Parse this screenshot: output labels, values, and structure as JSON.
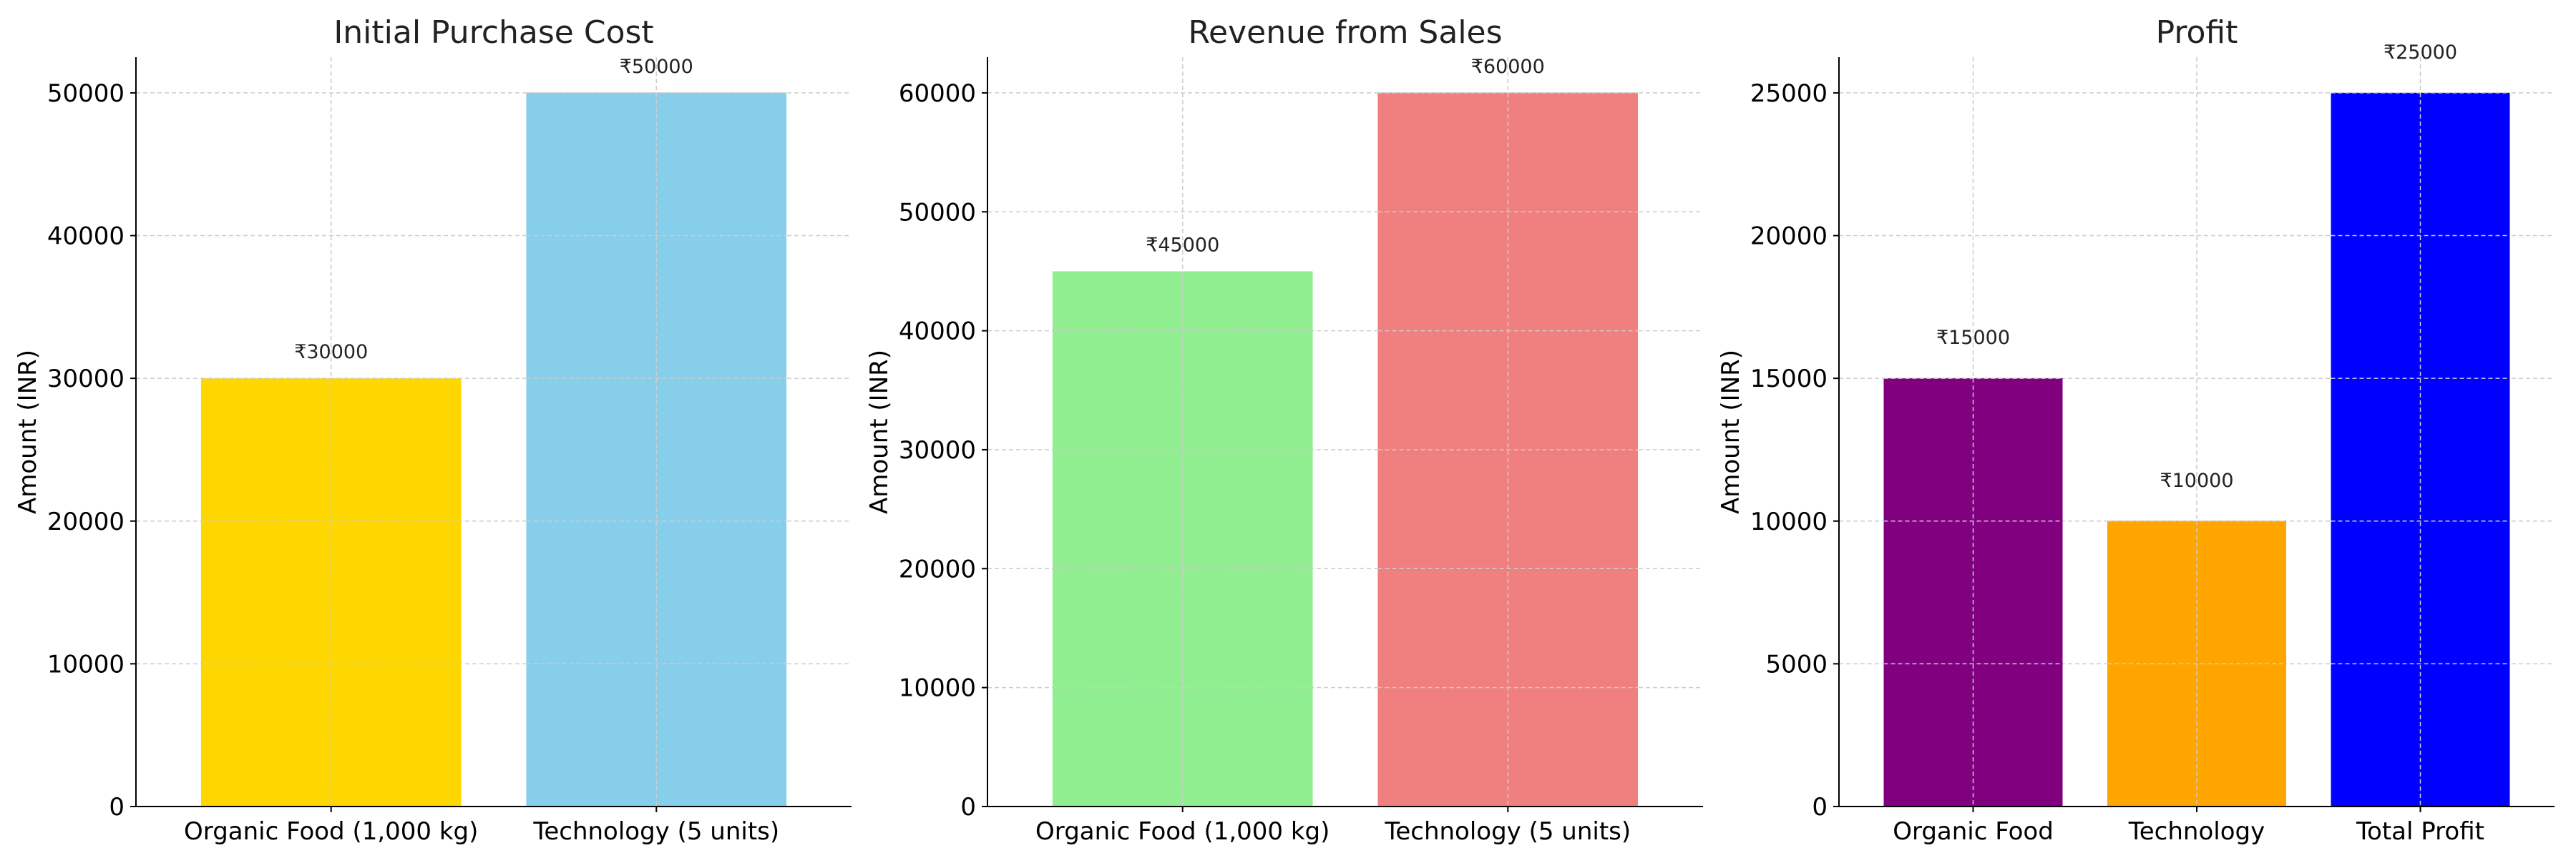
{
  "chart_data": [
    {
      "type": "bar",
      "title": "Initial Purchase Cost",
      "xlabel": "",
      "ylabel": "Amount (INR)",
      "categories": [
        "Organic Food (1,000 kg)",
        "Technology (5 units)"
      ],
      "values": [
        30000,
        50000
      ],
      "bar_labels": [
        "₹30000",
        "₹50000"
      ],
      "colors": [
        "#FFD700",
        "#87CEEB"
      ],
      "yticks": [
        0,
        10000,
        20000,
        30000,
        40000,
        50000
      ],
      "ylim": [
        0,
        52500
      ],
      "grid": true
    },
    {
      "type": "bar",
      "title": "Revenue from Sales",
      "xlabel": "",
      "ylabel": "Amount (INR)",
      "categories": [
        "Organic Food (1,000 kg)",
        "Technology (5 units)"
      ],
      "values": [
        45000,
        60000
      ],
      "bar_labels": [
        "₹45000",
        "₹60000"
      ],
      "colors": [
        "#90EE90",
        "#F08080"
      ],
      "yticks": [
        0,
        10000,
        20000,
        30000,
        40000,
        50000,
        60000
      ],
      "ylim": [
        0,
        63000
      ],
      "grid": true
    },
    {
      "type": "bar",
      "title": "Profit",
      "xlabel": "",
      "ylabel": "Amount (INR)",
      "categories": [
        "Organic Food",
        "Technology",
        "Total Profit"
      ],
      "values": [
        15000,
        10000,
        25000
      ],
      "bar_labels": [
        "₹15000",
        "₹10000",
        "₹25000"
      ],
      "colors": [
        "#800080",
        "#FFA500",
        "#0000FF"
      ],
      "yticks": [
        0,
        5000,
        10000,
        15000,
        20000,
        25000
      ],
      "ylim": [
        0,
        26250
      ],
      "grid": true
    }
  ]
}
